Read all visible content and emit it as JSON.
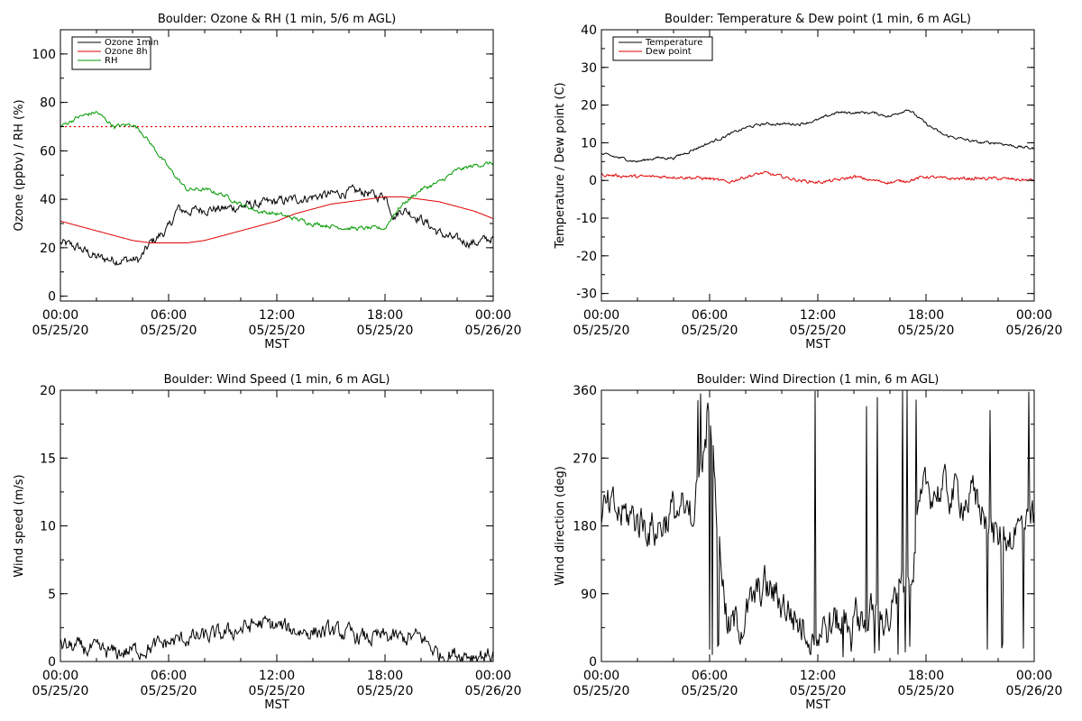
{
  "chart_data": [
    {
      "type": "line",
      "title": "Boulder: Ozone & RH (1 min, 5/6 m AGL)",
      "xlabel": "MST",
      "ylabel": "Ozone (ppbv) / RH (%)",
      "x_ticks": [
        {
          "h": 0,
          "time": "00:00",
          "date": "05/25/20"
        },
        {
          "h": 6,
          "time": "06:00",
          "date": "05/25/20"
        },
        {
          "h": 12,
          "time": "12:00",
          "date": "05/25/20"
        },
        {
          "h": 18,
          "time": "18:00",
          "date": "05/25/20"
        },
        {
          "h": 24,
          "time": "00:00",
          "date": "05/26/20"
        }
      ],
      "xlim": [
        0,
        24
      ],
      "ylim": [
        -2,
        110
      ],
      "y_ticks": [
        0,
        20,
        40,
        60,
        80,
        100
      ],
      "legend_position": "top-left",
      "reference_line": {
        "y": 70,
        "color": "#e00000",
        "style": "dotted"
      },
      "series": [
        {
          "name": "Ozone 1min",
          "color": "#000000",
          "noise": 1.6,
          "x": [
            0,
            1,
            2,
            3,
            4,
            4.4,
            5,
            6,
            6.5,
            7,
            8,
            9,
            10,
            11,
            12,
            13,
            14,
            15,
            16,
            17,
            17.5,
            18,
            18.5,
            19,
            20,
            21,
            22,
            23,
            24
          ],
          "y": [
            22,
            20,
            16,
            15,
            15,
            15,
            22,
            28,
            36,
            35,
            36,
            36,
            37,
            38,
            39,
            40,
            41,
            42,
            43,
            43,
            41,
            42,
            33,
            36,
            32,
            26,
            23,
            22,
            24
          ]
        },
        {
          "name": "Ozone 8h",
          "color": "#e00000",
          "noise": 0,
          "x": [
            0,
            1,
            2,
            3,
            4,
            5,
            6,
            7,
            8,
            9,
            10,
            11,
            12,
            13,
            14,
            15,
            16,
            17,
            18,
            19,
            20,
            21,
            22,
            23,
            24
          ],
          "y": [
            31,
            29,
            27,
            25,
            23,
            22,
            22,
            22,
            23,
            25,
            27,
            29,
            31,
            34,
            36,
            38,
            39,
            40,
            41,
            41,
            40,
            39,
            37,
            35,
            32
          ]
        },
        {
          "name": "RH",
          "color": "#009900",
          "noise": 0.7,
          "x": [
            0,
            1,
            2,
            2.5,
            3,
            4,
            4.5,
            5,
            6,
            7,
            8,
            9,
            10,
            11,
            12,
            13,
            14,
            15,
            16,
            17,
            18,
            18.5,
            19,
            20,
            21,
            22,
            23,
            24
          ],
          "y": [
            70,
            74,
            76,
            73,
            70,
            71,
            68,
            63,
            53,
            44,
            44,
            42,
            38,
            35,
            34,
            32,
            30,
            29,
            28,
            28,
            28,
            34,
            38,
            44,
            47,
            52,
            54,
            55
          ]
        }
      ]
    },
    {
      "type": "line",
      "title": "Boulder: Temperature & Dew point (1 min, 6 m AGL)",
      "xlabel": "MST",
      "ylabel": "Temperature / Dew point (C)",
      "x_ticks": [
        {
          "h": 0,
          "time": "00:00",
          "date": "05/25/20"
        },
        {
          "h": 6,
          "time": "06:00",
          "date": "05/25/20"
        },
        {
          "h": 12,
          "time": "12:00",
          "date": "05/25/20"
        },
        {
          "h": 18,
          "time": "18:00",
          "date": "05/25/20"
        },
        {
          "h": 24,
          "time": "00:00",
          "date": "05/26/20"
        }
      ],
      "xlim": [
        0,
        24
      ],
      "ylim": [
        -32,
        40
      ],
      "y_ticks": [
        -30,
        -20,
        -10,
        0,
        10,
        20,
        30,
        40
      ],
      "legend_position": "top-left",
      "series": [
        {
          "name": "Temperature",
          "color": "#000000",
          "noise": 0.3,
          "x": [
            0,
            1,
            2,
            3,
            4,
            5,
            6,
            7,
            8,
            9,
            10,
            11,
            12,
            13,
            14,
            15,
            16,
            17,
            18,
            19,
            20,
            21,
            22,
            23,
            24
          ],
          "y": [
            7,
            6,
            5,
            6,
            6,
            8,
            10,
            12,
            14,
            15,
            15,
            15,
            16,
            18,
            18,
            18,
            17,
            19,
            15,
            12,
            11,
            10,
            10,
            9,
            8.5
          ]
        },
        {
          "name": "Dew point",
          "color": "#e00000",
          "noise": 0.35,
          "x": [
            0,
            2,
            4,
            6,
            7,
            8,
            9,
            10,
            11,
            12,
            13,
            14,
            15,
            16,
            17,
            18,
            19,
            20,
            22,
            24
          ],
          "y": [
            1.5,
            1,
            1,
            0.5,
            -0.5,
            1,
            2,
            1,
            0,
            -0.5,
            0,
            1,
            0,
            -0.5,
            0,
            1,
            0.5,
            0.5,
            0.5,
            0
          ]
        }
      ]
    },
    {
      "type": "line",
      "title": "Boulder: Wind Speed (1 min, 6 m AGL)",
      "xlabel": "MST",
      "ylabel": "Wind speed (m/s)",
      "x_ticks": [
        {
          "h": 0,
          "time": "00:00",
          "date": "05/25/20"
        },
        {
          "h": 6,
          "time": "06:00",
          "date": "05/25/20"
        },
        {
          "h": 12,
          "time": "12:00",
          "date": "05/25/20"
        },
        {
          "h": 18,
          "time": "18:00",
          "date": "05/25/20"
        },
        {
          "h": 24,
          "time": "00:00",
          "date": "05/26/20"
        }
      ],
      "xlim": [
        0,
        24
      ],
      "ylim": [
        0,
        20
      ],
      "y_ticks": [
        0,
        5,
        10,
        15,
        20
      ],
      "series": [
        {
          "name": "",
          "color": "#000000",
          "noise": 0.5,
          "clamp": [
            0,
            6
          ],
          "x": [
            0,
            1,
            2,
            3,
            4,
            5,
            6,
            7,
            8,
            9,
            10,
            11,
            12,
            13,
            14,
            15,
            16,
            17,
            18,
            19,
            20,
            21,
            22,
            23,
            24
          ],
          "y": [
            1.2,
            1.0,
            0.8,
            0.6,
            0.8,
            1.0,
            1.4,
            1.7,
            1.8,
            2.0,
            2.4,
            2.8,
            2.6,
            2.3,
            2.2,
            2.2,
            2.0,
            1.7,
            1.8,
            1.7,
            1.8,
            0.5,
            0.6,
            0.5,
            0.5
          ]
        }
      ]
    },
    {
      "type": "line",
      "title": "Boulder: Wind Direction (1 min, 6 m AGL)",
      "xlabel": "MST",
      "ylabel": "Wind direction (deg)",
      "x_ticks": [
        {
          "h": 0,
          "time": "00:00",
          "date": "05/25/20"
        },
        {
          "h": 6,
          "time": "06:00",
          "date": "05/25/20"
        },
        {
          "h": 12,
          "time": "12:00",
          "date": "05/25/20"
        },
        {
          "h": 18,
          "time": "18:00",
          "date": "05/25/20"
        },
        {
          "h": 24,
          "time": "00:00",
          "date": "05/26/20"
        }
      ],
      "xlim": [
        0,
        24
      ],
      "ylim": [
        0,
        360
      ],
      "y_ticks": [
        0,
        90,
        180,
        270,
        360
      ],
      "series": [
        {
          "name": "",
          "color": "#000000",
          "noise": 22,
          "clamp": [
            0,
            360
          ],
          "x": [
            0,
            1,
            2,
            3,
            4,
            5,
            6,
            7,
            8,
            9,
            10,
            11,
            12,
            13,
            14,
            15,
            16,
            17,
            18,
            19,
            20,
            21,
            22,
            23,
            24
          ],
          "y": [
            200,
            195,
            190,
            175,
            200,
            195,
            310,
            40,
            60,
            100,
            80,
            50,
            40,
            50,
            60,
            60,
            60,
            110,
            230,
            225,
            220,
            210,
            160,
            175,
            180
          ]
        }
      ]
    }
  ]
}
